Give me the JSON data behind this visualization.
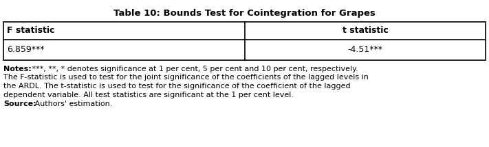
{
  "title": "Table 10: Bounds Test for Cointegration for Grapes",
  "col_headers": [
    "F statistic",
    "t statistic"
  ],
  "row_values": [
    "6.859***",
    "-4.51***"
  ],
  "notes_label": "Notes:",
  "notes_lines": [
    " ***, **, * denotes significance at 1 per cent, 5 per cent and 10 per cent, respectively.",
    "The F-statistic is used to test for the joint significance of the coefficients of the lagged levels in",
    "the ARDL. The t-statistic is used to test for the significance of the coefficient of the lagged",
    "dependent variable. All test statistics are significant at the 1 per cent level."
  ],
  "source_label": "Source:",
  "source_body": " Authors' estimation.",
  "bg_color": "#ffffff",
  "border_color": "#000000",
  "title_fontsize": 9.5,
  "table_fontsize": 9,
  "notes_fontsize": 8.0
}
